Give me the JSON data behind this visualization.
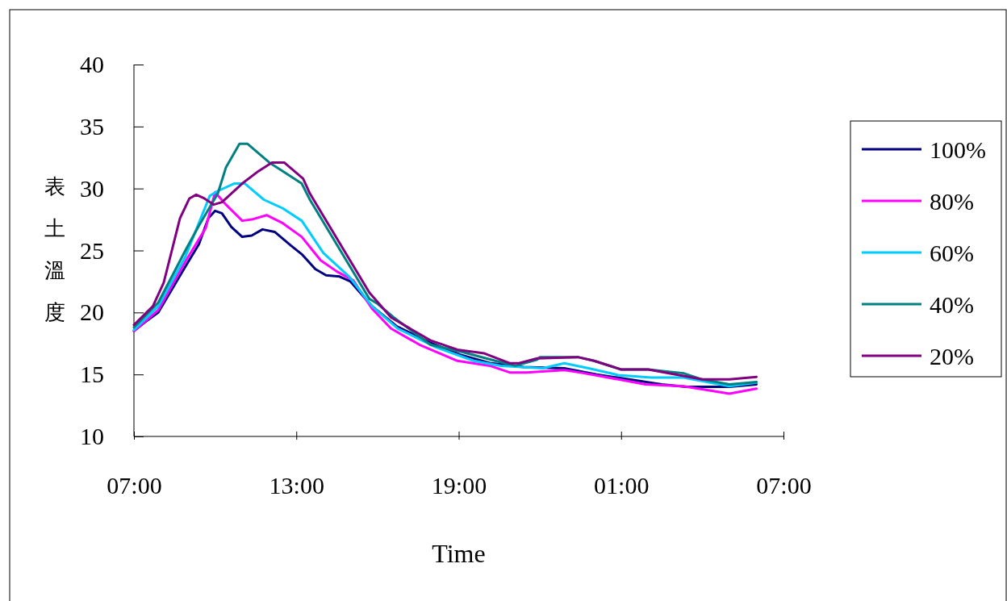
{
  "chart_data": {
    "type": "line",
    "xlabel": "Time",
    "ylabel": "表土溫度",
    "xlim": [
      "2000-01-01T07:00",
      "2000-01-02T07:00"
    ],
    "xticks": [
      {
        "value": "2000-01-01T07:00",
        "label": "07:00"
      },
      {
        "value": "2000-01-01T13:00",
        "label": "13:00"
      },
      {
        "value": "2000-01-01T19:00",
        "label": "19:00"
      },
      {
        "value": "2000-01-02T01:00",
        "label": "01:00"
      },
      {
        "value": "2000-01-02T07:00",
        "label": "07:00"
      }
    ],
    "ylim": [
      10,
      40
    ],
    "yticks": [
      10,
      15,
      20,
      25,
      30,
      35,
      40
    ],
    "grid": false,
    "legend": "right",
    "marker": "none",
    "line_style": "solid",
    "series": [
      {
        "name": "100%",
        "color": "#000080",
        "x": [
          "2000-01-01T07:00",
          "2000-01-01T07:24",
          "2000-01-01T07:54",
          "2000-01-01T08:54",
          "2000-01-01T09:24",
          "2000-01-01T09:45",
          "2000-01-01T10:00",
          "2000-01-01T10:15",
          "2000-01-01T10:36",
          "2000-01-01T11:00",
          "2000-01-01T11:21",
          "2000-01-01T11:45",
          "2000-01-01T12:12",
          "2000-01-01T12:48",
          "2000-01-01T13:12",
          "2000-01-01T13:42",
          "2000-01-01T14:06",
          "2000-01-01T14:36",
          "2000-01-01T15:00",
          "2000-01-01T15:48",
          "2000-01-01T16:42",
          "2000-01-01T17:54",
          "2000-01-01T19:03",
          "2000-01-01T20:12",
          "2000-01-01T21:24",
          "2000-01-01T22:54",
          "2000-01-02T00:06",
          "2000-01-02T01:18",
          "2000-01-02T02:30",
          "2000-01-02T03:24",
          "2000-01-02T05:00",
          "2000-01-02T06:00"
        ],
        "values": [
          18.5,
          19.2,
          20,
          23.7,
          25.5,
          27.6,
          28.2,
          28,
          26.9,
          26.1,
          26.2,
          26.7,
          26.5,
          25.4,
          24.7,
          23.5,
          23,
          22.9,
          22.5,
          20.5,
          18.9,
          17.6,
          16.6,
          15.9,
          15.6,
          15.5,
          15,
          14.6,
          14.2,
          14,
          14,
          14.2
        ]
      },
      {
        "name": "80%",
        "color": "#ff00ff",
        "x": [
          "2000-01-01T07:00",
          "2000-01-01T07:54",
          "2000-01-01T08:54",
          "2000-01-01T09:39",
          "2000-01-01T10:00",
          "2000-01-01T10:24",
          "2000-01-01T11:00",
          "2000-01-01T11:21",
          "2000-01-01T11:54",
          "2000-01-01T12:30",
          "2000-01-01T13:12",
          "2000-01-01T13:54",
          "2000-01-01T14:30",
          "2000-01-01T15:06",
          "2000-01-01T15:48",
          "2000-01-01T16:30",
          "2000-01-01T17:33",
          "2000-01-01T18:57",
          "2000-01-01T20:09",
          "2000-01-01T20:54",
          "2000-01-01T21:30",
          "2000-01-01T22:54",
          "2000-01-01T23:30",
          "2000-01-02T00:54",
          "2000-01-02T01:54",
          "2000-01-02T03:18",
          "2000-01-02T05:00",
          "2000-01-02T06:00"
        ],
        "values": [
          18.5,
          20.2,
          24.1,
          26.8,
          29.7,
          28.7,
          27.4,
          27.5,
          27.85,
          27.2,
          26.1,
          24.2,
          23.3,
          22.6,
          20.3,
          18.7,
          17.4,
          16.1,
          15.7,
          15.15,
          15.15,
          15.35,
          15.15,
          14.6,
          14.2,
          14.05,
          13.45,
          13.85
        ]
      },
      {
        "name": "60%",
        "color": "#00ccff",
        "x": [
          "2000-01-01T07:00",
          "2000-01-01T07:54",
          "2000-01-01T08:54",
          "2000-01-01T09:48",
          "2000-01-01T10:06",
          "2000-01-01T10:42",
          "2000-01-01T11:06",
          "2000-01-01T11:48",
          "2000-01-01T12:30",
          "2000-01-01T13:12",
          "2000-01-01T14:00",
          "2000-01-01T14:57",
          "2000-01-01T15:48",
          "2000-01-01T16:45",
          "2000-01-01T18:09",
          "2000-01-01T19:33",
          "2000-01-01T20:33",
          "2000-01-01T22:06",
          "2000-01-01T22:54",
          "2000-01-01T23:48",
          "2000-01-02T00:54",
          "2000-01-02T02:06",
          "2000-01-02T03:18",
          "2000-01-02T05:00",
          "2000-01-02T06:00"
        ],
        "values": [
          18.6,
          20.5,
          24.5,
          29.4,
          29.8,
          30.4,
          30.4,
          29.1,
          28.4,
          27.4,
          24.8,
          22.9,
          20.5,
          18.7,
          17.2,
          16.1,
          15.7,
          15.5,
          15.9,
          15.5,
          14.95,
          14.75,
          14.75,
          14.05,
          14.35
        ]
      },
      {
        "name": "40%",
        "color": "#008080",
        "x": [
          "2000-01-01T07:00",
          "2000-01-01T07:54",
          "2000-01-01T08:54",
          "2000-01-01T09:24",
          "2000-01-01T10:06",
          "2000-01-01T10:24",
          "2000-01-01T10:54",
          "2000-01-01T11:12",
          "2000-01-01T12:00",
          "2000-01-01T12:30",
          "2000-01-01T13:12",
          "2000-01-01T13:30",
          "2000-01-01T15:42",
          "2000-01-01T16:00",
          "2000-01-01T16:36",
          "2000-01-01T17:57",
          "2000-01-01T19:09",
          "2000-01-01T20:21",
          "2000-01-01T21:06",
          "2000-01-01T21:54",
          "2000-01-01T22:00",
          "2000-01-01T23:24",
          "2000-01-02T00:00",
          "2000-01-02T01:00",
          "2000-01-02T02:00",
          "2000-01-02T03:18",
          "2000-01-02T04:00",
          "2000-01-02T05:00",
          "2000-01-02T06:00"
        ],
        "values": [
          18.8,
          20.8,
          25,
          27,
          29.6,
          31.7,
          33.6,
          33.6,
          32.1,
          31.4,
          30.4,
          29.1,
          21.1,
          20.7,
          19.6,
          17.4,
          16.8,
          16.1,
          15.7,
          16.2,
          16.4,
          16.4,
          16.1,
          15.4,
          15.4,
          15.1,
          14.6,
          14.2,
          14.4
        ]
      },
      {
        "name": "20%",
        "color": "#800080",
        "x": [
          "2000-01-01T07:00",
          "2000-01-01T07:42",
          "2000-01-01T08:06",
          "2000-01-01T08:42",
          "2000-01-01T09:03",
          "2000-01-01T09:18",
          "2000-01-01T09:36",
          "2000-01-01T09:57",
          "2000-01-01T10:15",
          "2000-01-01T11:00",
          "2000-01-01T11:36",
          "2000-01-01T12:06",
          "2000-01-01T12:33",
          "2000-01-01T13:15",
          "2000-01-01T13:30",
          "2000-01-01T15:42",
          "2000-01-01T16:30",
          "2000-01-01T17:57",
          "2000-01-01T18:57",
          "2000-01-01T19:57",
          "2000-01-01T20:54",
          "2000-01-01T21:12",
          "2000-01-01T21:54",
          "2000-01-01T23:24",
          "2000-01-02T00:00",
          "2000-01-02T01:00",
          "2000-01-02T02:00",
          "2000-01-02T04:00",
          "2000-01-02T05:00",
          "2000-01-02T06:00"
        ],
        "values": [
          19,
          20.5,
          22.4,
          27.6,
          29.2,
          29.5,
          29.2,
          28.7,
          28.9,
          30.4,
          31.4,
          32.1,
          32.1,
          30.8,
          29.6,
          21.6,
          19.6,
          17.75,
          17,
          16.7,
          15.9,
          15.9,
          16.3,
          16.4,
          16.1,
          15.4,
          15.4,
          14.6,
          14.6,
          14.8
        ]
      }
    ]
  }
}
